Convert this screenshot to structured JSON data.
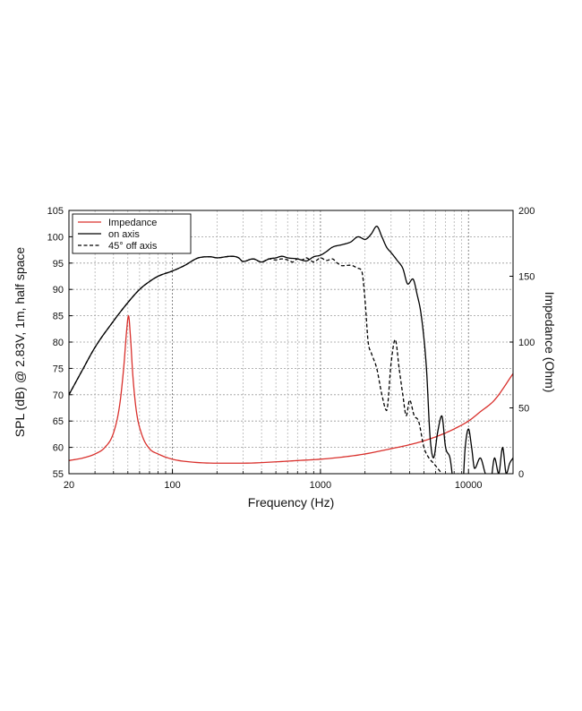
{
  "chart_data": {
    "type": "line",
    "xlabel": "Frequency (Hz)",
    "ylabel": "SPL (dB) @ 2.83V, 1m, half space",
    "y2label": "Impedance (Ohm)",
    "xscale": "log",
    "xlim": [
      20,
      20000
    ],
    "ylim": [
      55,
      105
    ],
    "y2lim": [
      0,
      200
    ],
    "xticks": [
      {
        "value": 20,
        "label": "20"
      },
      {
        "value": 100,
        "label": "100"
      },
      {
        "value": 1000,
        "label": "1000"
      },
      {
        "value": 10000,
        "label": "10000"
      }
    ],
    "yticks": [
      55,
      60,
      65,
      70,
      75,
      80,
      85,
      90,
      95,
      100,
      105
    ],
    "y2ticks": [
      0,
      50,
      100,
      150,
      200
    ],
    "grid": true,
    "legend_position": "top-left",
    "series": [
      {
        "name": "Impedance",
        "axis": "right",
        "color": "#d9302c",
        "style": "solid",
        "x": [
          20,
          25,
          30,
          35,
          40,
          44,
          47,
          49,
          50.5,
          52,
          54,
          57,
          62,
          70,
          80,
          100,
          130,
          200,
          300,
          500,
          700,
          1000,
          1500,
          2000,
          3000,
          4000,
          5000,
          6000,
          7000,
          8000,
          10000,
          12000,
          15000,
          20000
        ],
        "values": [
          10,
          12,
          15,
          20,
          31,
          52,
          82,
          108,
          120,
          105,
          75,
          48,
          30,
          19,
          15,
          11,
          9,
          8,
          8,
          9,
          10,
          11,
          13,
          15,
          19,
          22,
          25,
          28,
          31,
          34,
          40,
          47,
          56,
          76
        ]
      },
      {
        "name": "on axis",
        "axis": "left",
        "color": "#000000",
        "style": "solid",
        "x": [
          20,
          25,
          30,
          40,
          50,
          60,
          70,
          80,
          100,
          120,
          150,
          180,
          200,
          250,
          280,
          300,
          350,
          400,
          450,
          500,
          550,
          600,
          700,
          800,
          900,
          1000,
          1100,
          1200,
          1400,
          1600,
          1800,
          2000,
          2200,
          2400,
          2600,
          2800,
          3000,
          3300,
          3600,
          3900,
          4200,
          4500,
          4800,
          5200,
          5500,
          5800,
          6200,
          6600,
          7000,
          7500,
          8000,
          8500,
          9000,
          9500,
          10000,
          10500,
          11000,
          12000,
          13000,
          14000,
          15000,
          16000,
          17000,
          18000,
          19000,
          20000
        ],
        "values": [
          70,
          75,
          79,
          84,
          87.5,
          90,
          91.5,
          92.5,
          93.5,
          94.5,
          96,
          96.2,
          96,
          96.3,
          96,
          95.3,
          95.8,
          95.2,
          95.8,
          96,
          96.3,
          96,
          95.8,
          95.4,
          96.2,
          96.5,
          97.2,
          98,
          98.5,
          99,
          100,
          99.5,
          100.5,
          102,
          100,
          98,
          97,
          95.5,
          94,
          91,
          92,
          89,
          85,
          75,
          62,
          58,
          63,
          66,
          60,
          58,
          53,
          55,
          50,
          60,
          63.5,
          60,
          56,
          58,
          55,
          53,
          58,
          55,
          60,
          55,
          57,
          58
        ]
      },
      {
        "name": "45° off axis",
        "axis": "left",
        "color": "#000000",
        "style": "dashed",
        "x": [
          20,
          25,
          30,
          40,
          50,
          60,
          70,
          80,
          100,
          120,
          150,
          180,
          200,
          250,
          280,
          300,
          350,
          400,
          450,
          500,
          550,
          600,
          650,
          700,
          750,
          800,
          850,
          900,
          950,
          1000,
          1100,
          1200,
          1300,
          1400,
          1600,
          1800,
          1900,
          2000,
          2100,
          2200,
          2400,
          2600,
          2800,
          3000,
          3200,
          3400,
          3600,
          3800,
          4000,
          4300,
          4600,
          5000,
          5400,
          5800,
          6200,
          6600,
          7000
        ],
        "values": [
          70,
          75,
          79,
          84,
          87.5,
          90,
          91.5,
          92.5,
          93.5,
          94.5,
          96,
          96.2,
          96,
          96.3,
          96,
          95.3,
          95.8,
          95.2,
          95.8,
          95.6,
          95.8,
          95.6,
          95.2,
          95.8,
          95.6,
          96,
          95.6,
          95.2,
          95.6,
          96,
          95.5,
          95.8,
          95,
          94.5,
          94.6,
          94,
          93.5,
          88,
          80,
          78,
          75,
          70,
          67,
          76,
          80.5,
          75,
          70,
          66,
          69,
          66,
          65,
          60,
          58,
          57,
          56,
          55,
          54
        ]
      }
    ]
  }
}
